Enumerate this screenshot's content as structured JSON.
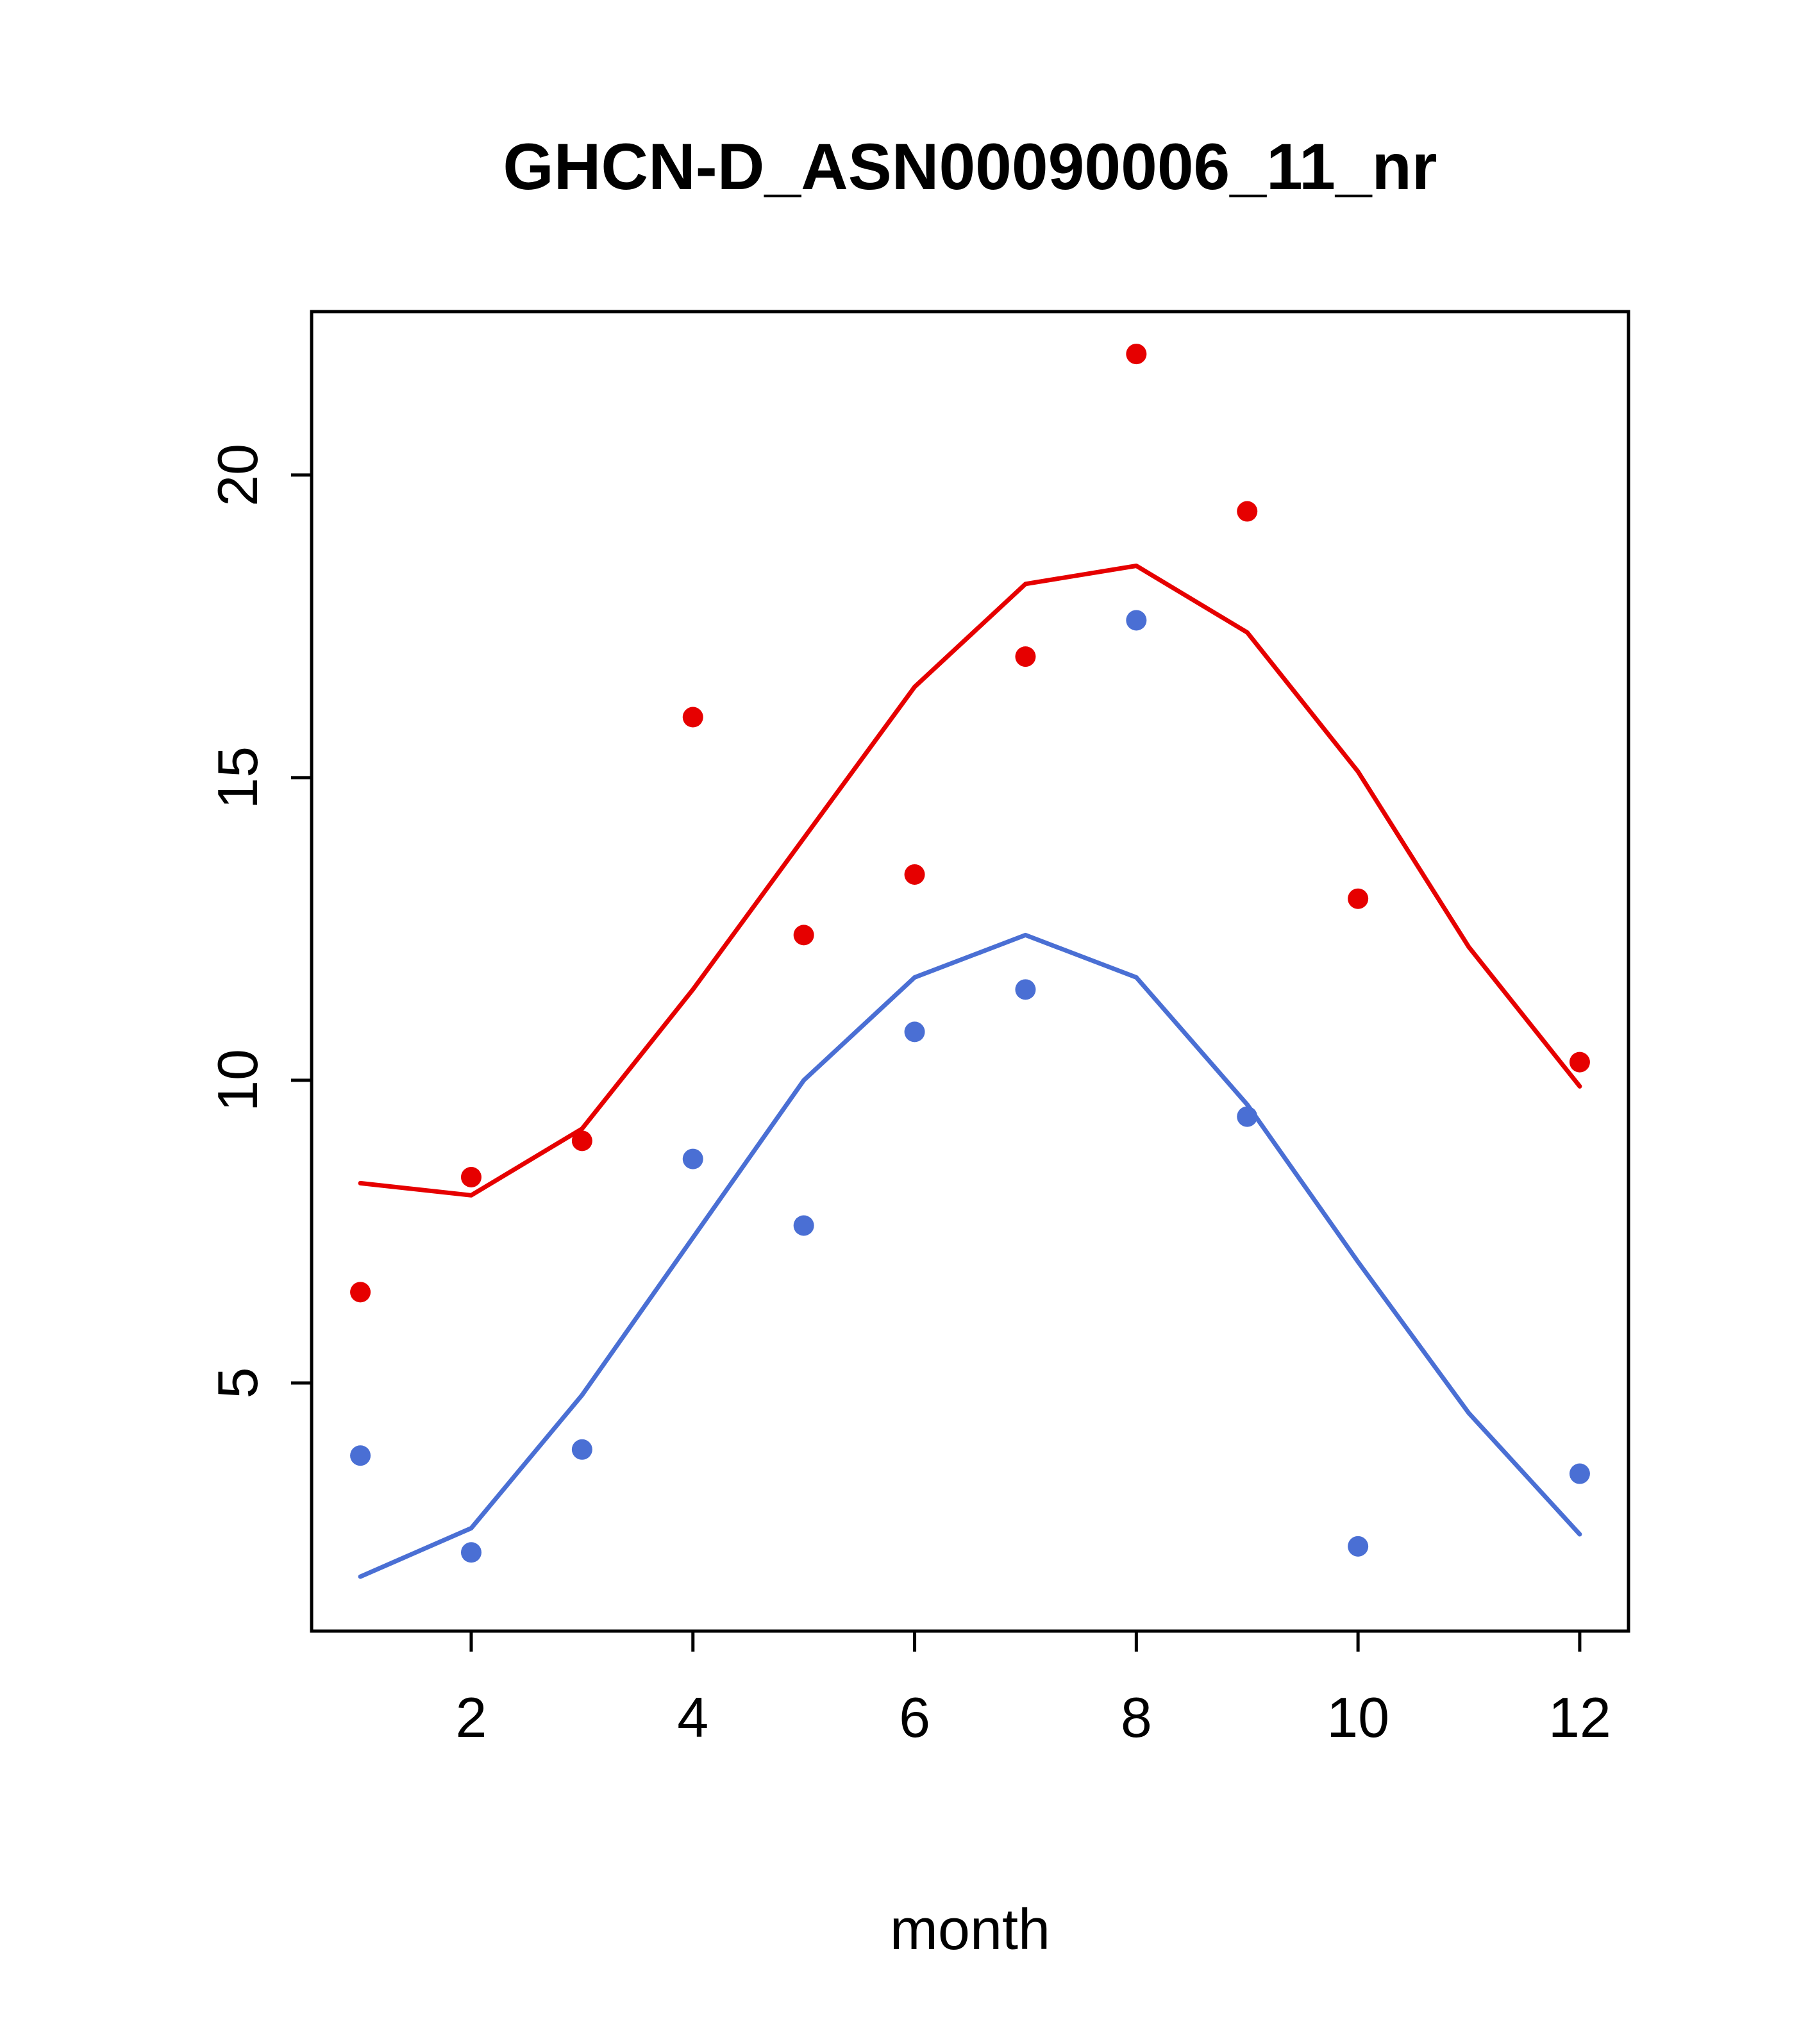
{
  "title": "GHCN-D_ASN00090006_11_nr",
  "xlabel": "month",
  "colors": {
    "red": "#e60000",
    "blue": "#4a6fd4",
    "axis": "#000000",
    "background": "#ffffff"
  },
  "chart_data": {
    "type": "scatter",
    "title": "GHCN-D_ASN00090006_11_nr",
    "xlabel": "month",
    "ylabel": "",
    "xlim": [
      0.56,
      12.44
    ],
    "ylim": [
      0.9,
      22.7
    ],
    "x_ticks": [
      2,
      4,
      6,
      8,
      10,
      12
    ],
    "y_ticks": [
      5,
      10,
      15,
      20
    ],
    "grid": false,
    "legend": "none",
    "series": [
      {
        "name": "red-points",
        "kind": "points",
        "color": "#e60000",
        "x": [
          1,
          2,
          3,
          4,
          5,
          6,
          7,
          8,
          9,
          10,
          12
        ],
        "y": [
          6.5,
          8.4,
          9.0,
          16.0,
          12.4,
          13.4,
          17.0,
          22.0,
          19.4,
          13.0,
          10.3
        ]
      },
      {
        "name": "red-line",
        "kind": "line",
        "color": "#e60000",
        "x": [
          1,
          2,
          3,
          4,
          5,
          6,
          7,
          8,
          9,
          10,
          11,
          12
        ],
        "y": [
          8.3,
          8.1,
          9.2,
          11.5,
          14.0,
          16.5,
          18.2,
          18.5,
          17.4,
          15.1,
          12.2,
          9.9
        ]
      },
      {
        "name": "blue-points",
        "kind": "points",
        "color": "#4a6fd4",
        "x": [
          1,
          2,
          3,
          4,
          5,
          6,
          7,
          8,
          9,
          10,
          12
        ],
        "y": [
          3.8,
          2.2,
          3.9,
          8.7,
          7.6,
          10.8,
          11.5,
          17.6,
          9.4,
          2.3,
          3.5
        ]
      },
      {
        "name": "blue-line",
        "kind": "line",
        "color": "#4a6fd4",
        "x": [
          1,
          2,
          3,
          4,
          5,
          6,
          7,
          8,
          9,
          10,
          11,
          12
        ],
        "y": [
          1.8,
          2.6,
          4.8,
          7.4,
          10.0,
          11.7,
          12.4,
          11.7,
          9.6,
          7.0,
          4.5,
          2.5
        ]
      }
    ]
  }
}
